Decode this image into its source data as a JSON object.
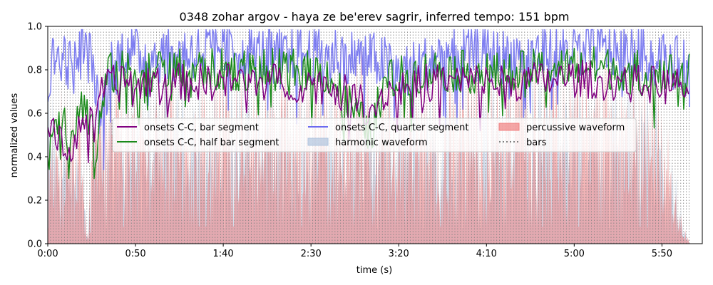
{
  "chart_data": {
    "type": "line",
    "title": "0348 zohar argov - haya ze be'erev sagrir, inferred tempo: 151 bpm",
    "xlabel": "time (s)",
    "ylabel": "normalized values",
    "xlim": [
      0,
      373
    ],
    "ylim": [
      0,
      1
    ],
    "x_ticks": [
      0,
      50,
      100,
      150,
      200,
      250,
      300,
      350
    ],
    "x_tick_labels": [
      "0:00",
      "0:50",
      "1:40",
      "2:30",
      "3:20",
      "4:10",
      "5:00",
      "5:50"
    ],
    "y_ticks": [
      0,
      0.2,
      0.4,
      0.6,
      0.8,
      1.0
    ],
    "y_tick_labels": [
      "0.0",
      "0.2",
      "0.4",
      "0.6",
      "0.8",
      "1.0"
    ],
    "grid": false,
    "legend_position": "upper-center",
    "bar_period_s": 1.589,
    "duration_s": 366,
    "legend": [
      {
        "label": "onsets C-C, bar segment",
        "kind": "line",
        "color": "#800080"
      },
      {
        "label": "onsets C-C, quarter segment",
        "kind": "line",
        "color": "#6a6af0"
      },
      {
        "label": "percussive waveform",
        "kind": "patch",
        "color": "#f08080"
      },
      {
        "label": "onsets C-C, half bar segment",
        "kind": "line",
        "color": "#1a8a1a"
      },
      {
        "label": "harmonic waveform",
        "kind": "patch",
        "color": "#b0c4de"
      },
      {
        "label": "bars",
        "kind": "dotted",
        "color": "#808080"
      }
    ],
    "series": [
      {
        "name": "onsets C-C, quarter segment",
        "color": "#6a6af0",
        "opacity": 0.85,
        "width": 1.5,
        "x_range": [
          0,
          366
        ],
        "base": [
          0.7,
          0.95
        ],
        "spread": 0.13,
        "points": [
          [
            0,
            0.7
          ],
          [
            3,
            0.84
          ],
          [
            8,
            0.88
          ],
          [
            14,
            0.8
          ],
          [
            20,
            0.9
          ],
          [
            26,
            0.83
          ],
          [
            30,
            0.55
          ],
          [
            36,
            0.82
          ],
          [
            45,
            0.9
          ],
          [
            55,
            0.86
          ],
          [
            80,
            0.88
          ],
          [
            100,
            0.9
          ],
          [
            130,
            0.86
          ],
          [
            160,
            0.88
          ],
          [
            190,
            0.84
          ],
          [
            200,
            0.78
          ],
          [
            230,
            0.88
          ],
          [
            260,
            0.86
          ],
          [
            300,
            0.9
          ],
          [
            330,
            0.88
          ],
          [
            350,
            0.86
          ],
          [
            366,
            0.8
          ]
        ]
      },
      {
        "name": "onsets C-C, half bar segment",
        "color": "#1a8a1a",
        "opacity": 1,
        "width": 1.5,
        "x_range": [
          0,
          366
        ],
        "spread": 0.1,
        "points": [
          [
            0,
            0.38
          ],
          [
            4,
            0.58
          ],
          [
            8,
            0.62
          ],
          [
            12,
            0.5
          ],
          [
            16,
            0.56
          ],
          [
            22,
            0.68
          ],
          [
            28,
            0.45
          ],
          [
            34,
            0.78
          ],
          [
            50,
            0.8
          ],
          [
            80,
            0.8
          ],
          [
            110,
            0.8
          ],
          [
            140,
            0.8
          ],
          [
            160,
            0.78
          ],
          [
            184,
            0.5
          ],
          [
            192,
            0.75
          ],
          [
            220,
            0.8
          ],
          [
            260,
            0.78
          ],
          [
            300,
            0.82
          ],
          [
            330,
            0.8
          ],
          [
            366,
            0.78
          ]
        ]
      },
      {
        "name": "onsets C-C, bar segment",
        "color": "#800080",
        "opacity": 1,
        "width": 1.5,
        "x_range": [
          0,
          366
        ],
        "spread": 0.09,
        "points": [
          [
            0,
            0.55
          ],
          [
            4,
            0.48
          ],
          [
            8,
            0.5
          ],
          [
            14,
            0.42
          ],
          [
            20,
            0.6
          ],
          [
            26,
            0.52
          ],
          [
            32,
            0.72
          ],
          [
            50,
            0.76
          ],
          [
            80,
            0.74
          ],
          [
            110,
            0.75
          ],
          [
            140,
            0.74
          ],
          [
            160,
            0.73
          ],
          [
            185,
            0.62
          ],
          [
            192,
            0.7
          ],
          [
            220,
            0.75
          ],
          [
            260,
            0.74
          ],
          [
            300,
            0.76
          ],
          [
            330,
            0.74
          ],
          [
            366,
            0.72
          ]
        ]
      }
    ],
    "harmonic_envelope": [
      [
        0,
        0.55
      ],
      [
        5,
        0.45
      ],
      [
        15,
        0.42
      ],
      [
        20,
        0.4
      ],
      [
        22,
        0.1
      ],
      [
        23,
        0.02
      ],
      [
        25,
        0.45
      ],
      [
        30,
        0.55
      ],
      [
        60,
        0.6
      ],
      [
        120,
        0.6
      ],
      [
        180,
        0.58
      ],
      [
        240,
        0.6
      ],
      [
        300,
        0.6
      ],
      [
        340,
        0.6
      ],
      [
        348,
        0.5
      ],
      [
        356,
        0.3
      ],
      [
        362,
        0.08
      ],
      [
        366,
        0
      ]
    ],
    "percussive_envelope": [
      [
        0,
        0.6
      ],
      [
        5,
        0.5
      ],
      [
        10,
        0.48
      ],
      [
        20,
        0.45
      ],
      [
        22,
        0.08
      ],
      [
        23,
        0.02
      ],
      [
        24,
        0.4
      ],
      [
        28,
        0.62
      ],
      [
        60,
        0.66
      ],
      [
        100,
        0.66
      ],
      [
        150,
        0.64
      ],
      [
        200,
        0.64
      ],
      [
        250,
        0.65
      ],
      [
        300,
        0.65
      ],
      [
        335,
        0.66
      ],
      [
        345,
        0.6
      ],
      [
        352,
        0.45
      ],
      [
        358,
        0.25
      ],
      [
        363,
        0.06
      ],
      [
        366,
        0
      ]
    ]
  }
}
